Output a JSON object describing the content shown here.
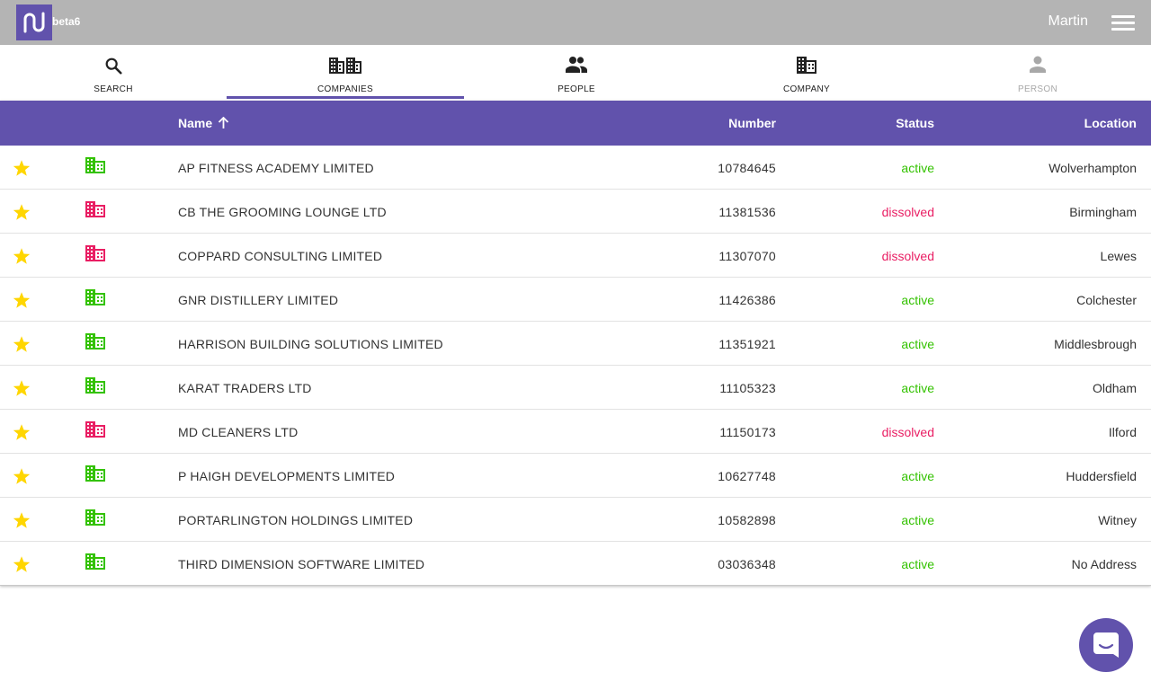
{
  "app": {
    "version": "beta6",
    "user": "Martin"
  },
  "tabs": [
    {
      "label": "SEARCH",
      "icon": "search-icon",
      "state": "normal"
    },
    {
      "label": "COMPANIES",
      "icon": "companies-icon",
      "state": "active"
    },
    {
      "label": "PEOPLE",
      "icon": "people-icon",
      "state": "normal"
    },
    {
      "label": "COMPANY",
      "icon": "company-icon",
      "state": "normal"
    },
    {
      "label": "PERSON",
      "icon": "person-icon",
      "state": "disabled"
    }
  ],
  "table": {
    "headers": {
      "name": "Name",
      "number": "Number",
      "status": "Status",
      "location": "Location"
    },
    "sort": {
      "column": "name",
      "direction": "ascending"
    },
    "rows": [
      {
        "name": "AP FITNESS ACADEMY LIMITED",
        "number": "10784645",
        "status": "active",
        "location": "Wolverhampton"
      },
      {
        "name": "CB THE GROOMING LOUNGE LTD",
        "number": "11381536",
        "status": "dissolved",
        "location": "Birmingham"
      },
      {
        "name": "COPPARD CONSULTING LIMITED",
        "number": "11307070",
        "status": "dissolved",
        "location": "Lewes"
      },
      {
        "name": "GNR DISTILLERY LIMITED",
        "number": "11426386",
        "status": "active",
        "location": "Colchester"
      },
      {
        "name": "HARRISON BUILDING SOLUTIONS LIMITED",
        "number": "11351921",
        "status": "active",
        "location": "Middlesbrough"
      },
      {
        "name": "KARAT TRADERS LTD",
        "number": "11105323",
        "status": "active",
        "location": "Oldham"
      },
      {
        "name": "MD CLEANERS LTD",
        "number": "11150173",
        "status": "dissolved",
        "location": "Ilford"
      },
      {
        "name": "P HAIGH DEVELOPMENTS LIMITED",
        "number": "10627748",
        "status": "active",
        "location": "Huddersfield"
      },
      {
        "name": "PORTARLINGTON HOLDINGS LIMITED",
        "number": "10582898",
        "status": "active",
        "location": "Witney"
      },
      {
        "name": "THIRD DIMENSION SOFTWARE LIMITED",
        "number": "03036348",
        "status": "active",
        "location": "No Address"
      }
    ]
  },
  "colors": {
    "brand": "#6152ac",
    "topbar": "#b4b4b4",
    "active": "#33c200",
    "dissolved": "#e91e63",
    "star": "#ffd600"
  }
}
